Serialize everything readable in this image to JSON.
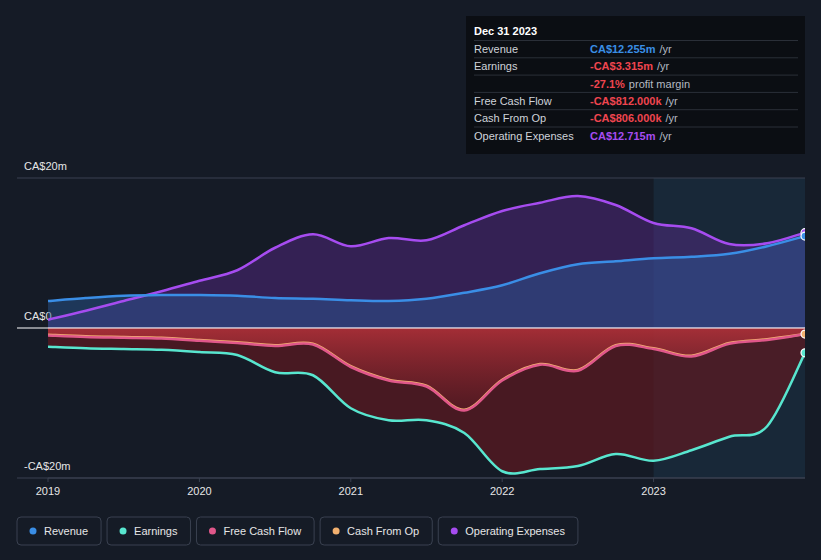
{
  "chart_data": {
    "type": "area",
    "x": [
      2019,
      2019.25,
      2019.5,
      2019.75,
      2020,
      2020.25,
      2020.5,
      2020.75,
      2021,
      2021.25,
      2021.5,
      2021.75,
      2022,
      2022.25,
      2022.5,
      2022.75,
      2023,
      2023.25,
      2023.5,
      2023.75,
      2024
    ],
    "xlim": [
      2019,
      2024
    ],
    "xticks": [
      2019,
      2020,
      2021,
      2022,
      2023
    ],
    "ylim": [
      -20,
      20
    ],
    "yticks": [
      {
        "value": -20,
        "label": "-CA$20m"
      },
      {
        "value": 0,
        "label": "CA$0"
      },
      {
        "value": 20,
        "label": "CA$20m"
      }
    ],
    "grid": true,
    "legend": "bottom-left",
    "series": [
      {
        "name": "Revenue",
        "color": "#3a8ee6",
        "values": [
          3.6,
          4.0,
          4.3,
          4.4,
          4.4,
          4.3,
          4.0,
          3.9,
          3.7,
          3.6,
          3.9,
          4.7,
          5.7,
          7.3,
          8.5,
          8.9,
          9.3,
          9.5,
          9.9,
          10.9,
          12.255
        ]
      },
      {
        "name": "Earnings",
        "color": "#58e6cf",
        "values": [
          -2.5,
          -2.7,
          -2.8,
          -2.9,
          -3.2,
          -3.6,
          -5.9,
          -6.3,
          -10.7,
          -12.3,
          -12.3,
          -14.0,
          -19.1,
          -18.8,
          -18.4,
          -16.8,
          -17.7,
          -16.3,
          -14.5,
          -13.1,
          -3.315
        ]
      },
      {
        "name": "Free Cash Flow",
        "color": "#e0578a",
        "values": [
          -1.0,
          -1.2,
          -1.3,
          -1.4,
          -1.7,
          -2.0,
          -2.4,
          -2.2,
          -5.2,
          -7.0,
          -7.8,
          -11.0,
          -7.0,
          -4.9,
          -5.7,
          -2.4,
          -2.8,
          -3.8,
          -2.1,
          -1.6,
          -0.812
        ]
      },
      {
        "name": "Cash From Op",
        "color": "#f2b06f",
        "values": [
          -0.9,
          -1.1,
          -1.2,
          -1.3,
          -1.6,
          -1.9,
          -2.3,
          -2.1,
          -5.1,
          -6.9,
          -7.7,
          -10.9,
          -6.9,
          -4.8,
          -5.6,
          -2.3,
          -2.7,
          -3.7,
          -2.0,
          -1.5,
          -0.806
        ]
      },
      {
        "name": "Operating Expenses",
        "color": "#a64cf0",
        "values": [
          1.1,
          2.3,
          3.6,
          4.9,
          6.3,
          7.7,
          10.7,
          12.5,
          10.9,
          12.0,
          11.7,
          13.7,
          15.6,
          16.7,
          17.6,
          16.4,
          14.0,
          13.3,
          11.2,
          11.3,
          12.715
        ]
      }
    ],
    "tooltip": {
      "date": "Dec 31 2023",
      "rows": [
        {
          "label": "Revenue",
          "value": "CA$12.255m",
          "unit": "/yr",
          "color": "#3a8ee6"
        },
        {
          "label": "Earnings",
          "value": "-CA$3.315m",
          "unit": "/yr",
          "color": "#f0454f"
        },
        {
          "value": "-27.1%",
          "unit": "profit margin",
          "color": "#f0454f"
        },
        {
          "label": "Free Cash Flow",
          "value": "-CA$812.000k",
          "unit": "/yr",
          "color": "#f0454f"
        },
        {
          "label": "Cash From Op",
          "value": "-CA$806.000k",
          "unit": "/yr",
          "color": "#f0454f"
        },
        {
          "label": "Operating Expenses",
          "value": "CA$12.715m",
          "unit": "/yr",
          "color": "#a64cf0"
        }
      ]
    }
  }
}
